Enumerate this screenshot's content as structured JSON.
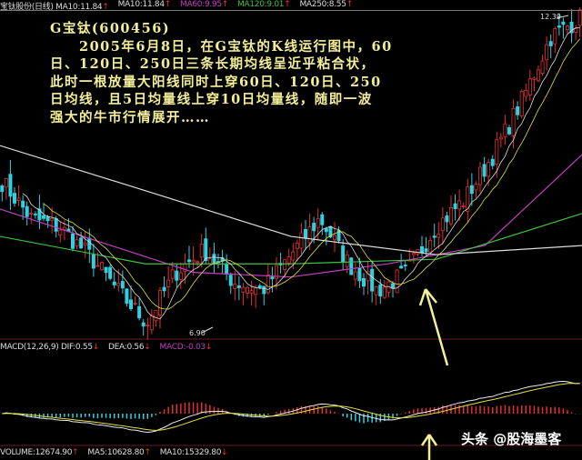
{
  "header": {
    "items": [
      {
        "text": "宝钛股份(日线) MA10:11.84",
        "color": "#dddddd",
        "arrow": "↑"
      },
      {
        "text": "MA10:11.84",
        "color": "#dddddd",
        "arrow": "↑"
      },
      {
        "text": "MA60:9.95",
        "color": "#c040c0",
        "arrow": "↑"
      },
      {
        "text": "MA120:9.01",
        "color": "#40c040",
        "arrow": "↑"
      },
      {
        "text": "MA250:8.55",
        "color": "#dddddd",
        "arrow": "↑"
      }
    ]
  },
  "macd_label": {
    "items": [
      {
        "text": "MACD(12,26,9) DIF:0.55",
        "color": "#dddddd",
        "arrow": "↓"
      },
      {
        "text": "DEA:0.56",
        "color": "#dddddd",
        "arrow": "↓"
      },
      {
        "text": "MACD:-0.03",
        "color": "#c040c0",
        "arrow": "↓"
      }
    ]
  },
  "volume_label": {
    "items": [
      {
        "text": "VOLUME:12674.90",
        "color": "#dddddd",
        "arrow": "↑"
      },
      {
        "text": "MA5:10628.80",
        "color": "#dddddd",
        "arrow": "↑"
      },
      {
        "text": "MA10:15329.80",
        "color": "#dddddd",
        "arrow": "↓"
      }
    ]
  },
  "annotation": {
    "lines": [
      "G宝钛(600456)",
      "　　2005年6月8日，在G宝钛的K线运行图中，60",
      "日、120日、250日三条长期均线呈近乎粘合状，",
      "此时一根放量大阳线同时上穿60日、120日、250",
      "日均线，且5日均量线上穿10日均量线，随即一波",
      "强大的牛市行情展开……"
    ]
  },
  "watermark": "头条 @股海墨客",
  "chart_data": {
    "type": "candlestick",
    "price_high_label": "12.39",
    "price_low_label": "6.90",
    "ylim": [
      6.9,
      12.39
    ],
    "close_keypoints": [
      9.53,
      8.89,
      8.73,
      8.25,
      7.62,
      7.06,
      7.94,
      8.33,
      7.78,
      7.62,
      8.25,
      8.89,
      8.09,
      7.62,
      7.94,
      8.73,
      9.21,
      10.0,
      10.96,
      12.07,
      12.39
    ],
    "ma_lines": [
      {
        "name": "MA60",
        "color": "#c040c0",
        "values": [
          9.05,
          8.49,
          7.94,
          7.86,
          8.09,
          8.41,
          10.0
        ]
      },
      {
        "name": "MA120",
        "color": "#40c040",
        "values": [
          8.57,
          8.09,
          8.09,
          8.17,
          8.97
        ]
      },
      {
        "name": "MA250",
        "color": "#dddddd",
        "values": [
          10.16,
          9.37,
          8.57,
          8.25,
          8.41
        ]
      }
    ],
    "colors": {
      "up": "#e03030",
      "down": "#30d0e0",
      "arrow": "#f3ee9a"
    }
  }
}
